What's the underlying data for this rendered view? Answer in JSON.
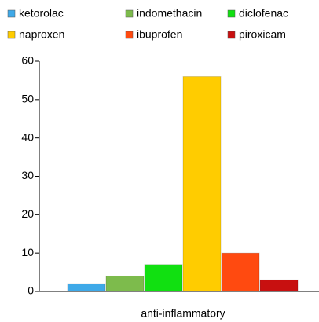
{
  "chart_data": {
    "type": "bar",
    "categories": [
      "anti-inflammatory"
    ],
    "series": [
      {
        "name": "ketorolac",
        "color": "#3fa9e8",
        "values": [
          2
        ]
      },
      {
        "name": "indomethacin",
        "color": "#7dbb4c",
        "values": [
          4
        ]
      },
      {
        "name": "diclofenac",
        "color": "#11e011",
        "values": [
          7
        ]
      },
      {
        "name": "naproxen",
        "color": "#ffcc00",
        "values": [
          56
        ]
      },
      {
        "name": "ibuprofen",
        "color": "#ff4a10",
        "values": [
          10
        ]
      },
      {
        "name": "piroxicam",
        "color": "#c81010",
        "values": [
          3
        ]
      }
    ],
    "ylim": [
      0,
      60
    ],
    "yticks": [
      0,
      10,
      20,
      30,
      40,
      50,
      60
    ],
    "grid": false
  }
}
